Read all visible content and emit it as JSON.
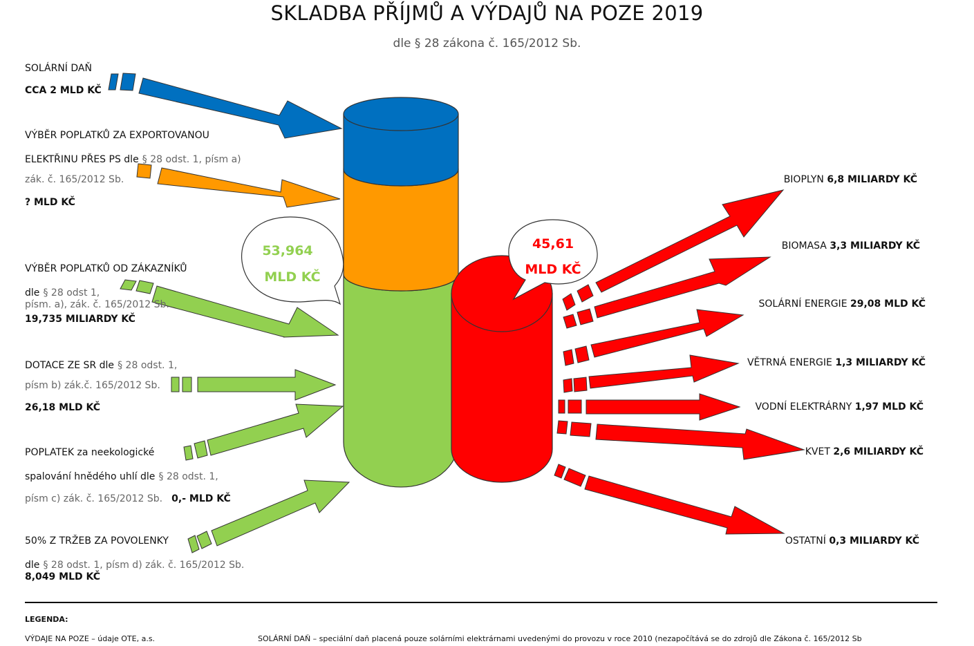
{
  "header": {
    "title": "SKLADBA PŘÍJMŮ A VÝDAJŮ NA POZE 2019",
    "subtitle": "dle § 28 zákona č. 165/2012 Sb."
  },
  "colors": {
    "blue": "#0070C0",
    "orange": "#FF9900",
    "green": "#92D050",
    "red": "#FF0000"
  },
  "income": {
    "solar_tax": {
      "name": "SOLÁRNÍ DAŇ",
      "amount": "CCA 2 MLD KČ"
    },
    "export": {
      "line1": "VÝBĚR POPLATKŮ ZA EXPORTOVANOU",
      "line2": "ELEKTŘINU PŘES PS dle",
      "ref1": "§ 28 odst. 1, písm a)",
      "ref2": "zák. č. 165/2012 Sb.",
      "amount": "? MLD KČ"
    },
    "customers": {
      "line1": "VÝBĚR POPLATKŮ OD ZÁKAZNÍKŮ",
      "dle": "dle",
      "ref1": "§ 28 odst 1,",
      "ref2": "písm. a), zák. č. 165/2012 Sb.",
      "amount": "19,735 MILIARDY KČ"
    },
    "subsidy": {
      "line1": "DOTACE ZE SR dle",
      "ref1": "§ 28 odst. 1,",
      "ref2": "písm b)  zák.č. 165/2012 Sb.",
      "amount": "26,18 MLD KČ"
    },
    "coal": {
      "line1": "POPLATEK za neekologické",
      "line2": "spalování hnědého uhlí dle",
      "ref1": "§ 28 odst. 1,",
      "ref2": "písm c)  zák. č. 165/2012 Sb.",
      "amount": "0,- MLD KČ"
    },
    "allowances": {
      "line1": "50% Z TRŽEB ZA POVOLENKY",
      "dle": "dle",
      "ref1": "§ 28 odst. 1, písm d)  zák. č. 165/2012 Sb.",
      "amount": "8,049 MLD KČ"
    }
  },
  "bubbles": {
    "income": {
      "line1": "53,964",
      "line2": "MLD KČ"
    },
    "expense": {
      "line1": "45,61",
      "line2": "MLD KČ"
    }
  },
  "expenses": [
    {
      "name": "BIOPLYN",
      "amount": "6,8 MILIARDY KČ"
    },
    {
      "name": "BIOMASA",
      "amount": "3,3 MILIARDY KČ"
    },
    {
      "name": "SOLÁRNÍ ENERGIE",
      "amount": "29,08 MLD KČ"
    },
    {
      "name": "VĚTRNÁ ENERGIE",
      "amount": "1,3 MILIARDY KČ"
    },
    {
      "name": "VODNÍ ELEKTRÁRNY",
      "amount": "1,97 MLD KČ"
    },
    {
      "name": "KVET",
      "amount": "2,6 MILIARDY KČ"
    },
    {
      "name": "OSTATNÍ",
      "amount": "0,3 MILIARDY KČ"
    }
  ],
  "legend": {
    "heading": "LEGENDA:",
    "item1": "VÝDAJE NA POZE – údaje OTE, a.s.",
    "item2": "SOLÁRNÍ DAŇ – speciální daň placená pouze solárními elektrárnami uvedenými do provozu v roce 2010 (nezapočítává se do zdrojů dle Zákona č. 165/2012 Sb"
  }
}
